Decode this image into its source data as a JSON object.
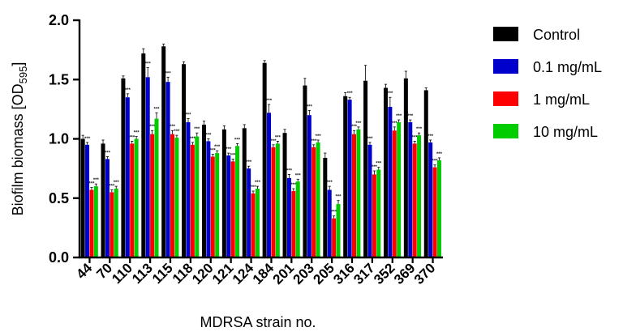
{
  "chart_data": {
    "type": "bar",
    "xlabel": "MDRSA strain no.",
    "ylabel": "Biofilm biomass [OD",
    "ylabel_subscript": "595",
    "ylabel_suffix": "]",
    "ylim": [
      0,
      2.0
    ],
    "yticks": [
      "0.0",
      "0.5",
      "1.0",
      "1.5",
      "2.0"
    ],
    "ytick_values": [
      0,
      0.5,
      1.0,
      1.5,
      2.0
    ],
    "grid": false,
    "legend_position": "top-right",
    "significance_marker": "***",
    "categories": [
      "44",
      "70",
      "110",
      "113",
      "115",
      "118",
      "120",
      "121",
      "124",
      "184",
      "201",
      "203",
      "205",
      "316",
      "317",
      "352",
      "369",
      "370"
    ],
    "series": [
      {
        "name": "Control",
        "color": "#000000",
        "values": [
          1.0,
          0.96,
          1.51,
          1.72,
          1.78,
          1.63,
          1.12,
          1.08,
          1.09,
          1.64,
          1.05,
          1.45,
          0.84,
          1.36,
          1.49,
          1.43,
          1.51,
          1.41
        ],
        "errors": [
          0.03,
          0.03,
          0.02,
          0.04,
          0.02,
          0.02,
          0.03,
          0.03,
          0.03,
          0.02,
          0.03,
          0.06,
          0.04,
          0.03,
          0.13,
          0.03,
          0.06,
          0.02
        ]
      },
      {
        "name": "0.1 mg/mL",
        "color": "#0000cc",
        "values": [
          0.95,
          0.83,
          1.35,
          1.52,
          1.48,
          1.14,
          0.98,
          0.86,
          0.75,
          1.22,
          0.67,
          1.2,
          0.57,
          1.33,
          0.95,
          1.27,
          1.14,
          0.97
        ],
        "errors": [
          0.02,
          0.02,
          0.03,
          0.08,
          0.04,
          0.03,
          0.02,
          0.02,
          0.02,
          0.07,
          0.03,
          0.04,
          0.03,
          0.02,
          0.02,
          0.08,
          0.02,
          0.02
        ]
      },
      {
        "name": "1 mg/mL",
        "color": "#ff0000",
        "values": [
          0.57,
          0.55,
          0.96,
          1.04,
          1.04,
          0.95,
          0.85,
          0.81,
          0.54,
          0.93,
          0.56,
          0.93,
          0.33,
          1.04,
          0.7,
          1.07,
          0.96,
          0.76
        ],
        "errors": [
          0.02,
          0.02,
          0.02,
          0.03,
          0.03,
          0.02,
          0.02,
          0.02,
          0.02,
          0.02,
          0.02,
          0.02,
          0.02,
          0.03,
          0.03,
          0.03,
          0.02,
          0.02
        ]
      },
      {
        "name": "10 mg/mL",
        "color": "#00cc00",
        "values": [
          0.6,
          0.58,
          1.0,
          1.17,
          1.01,
          1.02,
          0.88,
          0.94,
          0.58,
          0.96,
          0.64,
          0.97,
          0.45,
          1.08,
          0.74,
          1.14,
          1.03,
          0.82
        ],
        "errors": [
          0.02,
          0.02,
          0.02,
          0.05,
          0.02,
          0.03,
          0.02,
          0.02,
          0.02,
          0.02,
          0.02,
          0.02,
          0.03,
          0.02,
          0.02,
          0.02,
          0.02,
          0.02
        ]
      }
    ]
  }
}
